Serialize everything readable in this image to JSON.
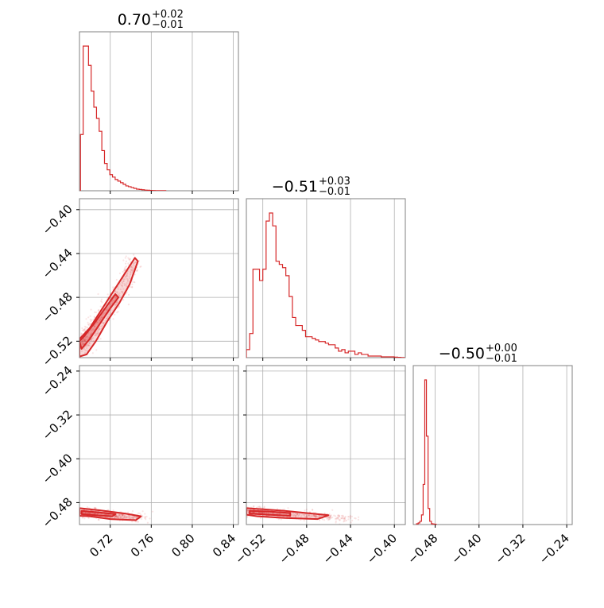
{
  "chart_data": {
    "type": "corner",
    "color": "#d62728",
    "grid": true,
    "panels": [
      {
        "id": "hist-p0",
        "kind": "histogram",
        "param": 0,
        "title": {
          "median": "0.70",
          "plus": "+0.02",
          "minus": "−0.01"
        },
        "xlim": [
          0.69,
          0.845
        ],
        "xticks": [
          0.72,
          0.76,
          0.8,
          0.84
        ],
        "bins": {
          "x0": 0.691,
          "width": 0.0026,
          "counts": [
            0.35,
            0.9,
            0.9,
            0.78,
            0.62,
            0.52,
            0.45,
            0.37,
            0.25,
            0.17,
            0.13,
            0.1,
            0.085,
            0.07,
            0.06,
            0.05,
            0.04,
            0.03,
            0.025,
            0.02,
            0.015,
            0.01,
            0.008,
            0.006,
            0.004,
            0.003,
            0.002,
            0.0015,
            0.001,
            0.001,
            0.001,
            0.0005
          ]
        }
      },
      {
        "id": "hist-p1",
        "kind": "histogram",
        "param": 1,
        "title": {
          "median": "−0.51",
          "plus": "+0.03",
          "minus": "−0.01"
        },
        "xlim": [
          -0.535,
          -0.39
        ],
        "xticks": [
          -0.52,
          -0.48,
          -0.44,
          -0.4
        ],
        "bins": {
          "x0": -0.535,
          "width": 0.003,
          "counts": [
            0.05,
            0.15,
            0.55,
            0.55,
            0.48,
            0.55,
            0.85,
            0.9,
            0.82,
            0.6,
            0.58,
            0.56,
            0.51,
            0.38,
            0.25,
            0.2,
            0.2,
            0.17,
            0.13,
            0.13,
            0.12,
            0.11,
            0.1,
            0.1,
            0.09,
            0.08,
            0.08,
            0.06,
            0.04,
            0.05,
            0.03,
            0.04,
            0.04,
            0.02,
            0.03,
            0.02,
            0.02,
            0.01,
            0.01,
            0.01,
            0.01,
            0.005,
            0.005,
            0.005,
            0.005,
            0.003,
            0.002,
            0.001
          ]
        }
      },
      {
        "id": "hist-p2",
        "kind": "histogram",
        "param": 2,
        "title": {
          "median": "−0.50",
          "plus": "+0.00",
          "minus": "−0.01"
        },
        "xlim": [
          -0.52,
          -0.23
        ],
        "xticks": [
          -0.48,
          -0.4,
          -0.32,
          -0.24
        ],
        "bins": {
          "x0": -0.514,
          "width": 0.003,
          "counts": [
            0.005,
            0.01,
            0.02,
            0.06,
            0.25,
            0.9,
            0.55,
            0.1,
            0.02,
            0.005,
            0.003,
            0.002
          ]
        }
      },
      {
        "id": "scatter-p0-p1",
        "kind": "2d",
        "xparam": 0,
        "yparam": 1,
        "xlim": [
          0.69,
          0.845
        ],
        "ylim": [
          -0.535,
          -0.39
        ],
        "xticks": [
          0.72,
          0.76,
          0.8,
          0.84
        ],
        "yticks": [
          -0.4,
          -0.44,
          -0.48,
          -0.52
        ],
        "yticklabels": [
          "−0.40",
          "−0.44",
          "−0.48",
          "−0.52"
        ],
        "core": [
          [
            0.691,
            -0.525
          ],
          [
            0.703,
            -0.51
          ],
          [
            0.715,
            -0.494
          ],
          [
            0.727,
            -0.478
          ],
          [
            0.737,
            -0.462
          ],
          [
            0.743,
            -0.446
          ]
        ],
        "contours": {
          "outer": [
            [
              0.69,
              -0.534
            ],
            [
              0.697,
              -0.532
            ],
            [
              0.706,
              -0.52
            ],
            [
              0.717,
              -0.502
            ],
            [
              0.729,
              -0.485
            ],
            [
              0.739,
              -0.468
            ],
            [
              0.747,
              -0.447
            ],
            [
              0.744,
              -0.444
            ],
            [
              0.733,
              -0.46
            ],
            [
              0.722,
              -0.476
            ],
            [
              0.711,
              -0.492
            ],
            [
              0.7,
              -0.508
            ],
            [
              0.69,
              -0.518
            ]
          ],
          "inner": [
            [
              0.692,
              -0.527
            ],
            [
              0.7,
              -0.518
            ],
            [
              0.71,
              -0.504
            ],
            [
              0.72,
              -0.49
            ],
            [
              0.728,
              -0.48
            ],
            [
              0.725,
              -0.477
            ],
            [
              0.715,
              -0.49
            ],
            [
              0.705,
              -0.503
            ],
            [
              0.695,
              -0.515
            ],
            [
              0.69,
              -0.52
            ]
          ]
        },
        "spread": [
          0.005,
          0.004
        ]
      },
      {
        "id": "scatter-p0-p2",
        "kind": "2d",
        "xparam": 0,
        "yparam": 2,
        "xlim": [
          0.69,
          0.845
        ],
        "ylim": [
          -0.52,
          -0.23
        ],
        "xticks": [
          0.72,
          0.76,
          0.8,
          0.84
        ],
        "xticklabels": [
          "0.72",
          "0.76",
          "0.80",
          "0.84"
        ],
        "yticks": [
          -0.24,
          -0.32,
          -0.4,
          -0.48
        ],
        "yticklabels": [
          "−0.24",
          "−0.32",
          "−0.40",
          "−0.48"
        ],
        "core": [
          [
            0.692,
            -0.498
          ],
          [
            0.705,
            -0.5
          ],
          [
            0.72,
            -0.503
          ],
          [
            0.735,
            -0.505
          ],
          [
            0.75,
            -0.507
          ]
        ],
        "contours": {
          "outer": [
            [
              0.69,
              -0.49
            ],
            [
              0.71,
              -0.494
            ],
            [
              0.735,
              -0.5
            ],
            [
              0.75,
              -0.505
            ],
            [
              0.745,
              -0.512
            ],
            [
              0.72,
              -0.51
            ],
            [
              0.7,
              -0.505
            ],
            [
              0.69,
              -0.504
            ]
          ],
          "inner": [
            [
              0.692,
              -0.495
            ],
            [
              0.71,
              -0.498
            ],
            [
              0.725,
              -0.501
            ],
            [
              0.722,
              -0.505
            ],
            [
              0.705,
              -0.503
            ],
            [
              0.692,
              -0.501
            ]
          ]
        },
        "spread": [
          0.006,
          0.004
        ]
      },
      {
        "id": "scatter-p1-p2",
        "kind": "2d",
        "xparam": 1,
        "yparam": 2,
        "xlim": [
          -0.535,
          -0.39
        ],
        "ylim": [
          -0.52,
          -0.23
        ],
        "xticks": [
          -0.52,
          -0.48,
          -0.44,
          -0.4
        ],
        "xticklabels": [
          "−0.52",
          "−0.48",
          "−0.44",
          "−0.40"
        ],
        "yticks": [
          -0.24,
          -0.32,
          -0.4,
          -0.48
        ],
        "core": [
          [
            -0.533,
            -0.496
          ],
          [
            -0.52,
            -0.498
          ],
          [
            -0.5,
            -0.501
          ],
          [
            -0.48,
            -0.504
          ],
          [
            -0.46,
            -0.506
          ],
          [
            -0.44,
            -0.508
          ]
        ],
        "contours": {
          "outer": [
            [
              -0.535,
              -0.49
            ],
            [
              -0.52,
              -0.492
            ],
            [
              -0.5,
              -0.495
            ],
            [
              -0.48,
              -0.499
            ],
            [
              -0.46,
              -0.503
            ],
            [
              -0.47,
              -0.51
            ],
            [
              -0.5,
              -0.508
            ],
            [
              -0.525,
              -0.505
            ],
            [
              -0.535,
              -0.502
            ]
          ],
          "inner": [
            [
              -0.532,
              -0.495
            ],
            [
              -0.515,
              -0.496
            ],
            [
              -0.495,
              -0.499
            ],
            [
              -0.495,
              -0.504
            ],
            [
              -0.515,
              -0.502
            ],
            [
              -0.532,
              -0.5
            ]
          ]
        },
        "spread": [
          0.006,
          0.004
        ]
      },
      {
        "id": "hist-p2-xaxis",
        "kind": "axis-only",
        "xticklabels": [
          "−0.48",
          "−0.40",
          "−0.32",
          "−0.24"
        ]
      }
    ]
  }
}
